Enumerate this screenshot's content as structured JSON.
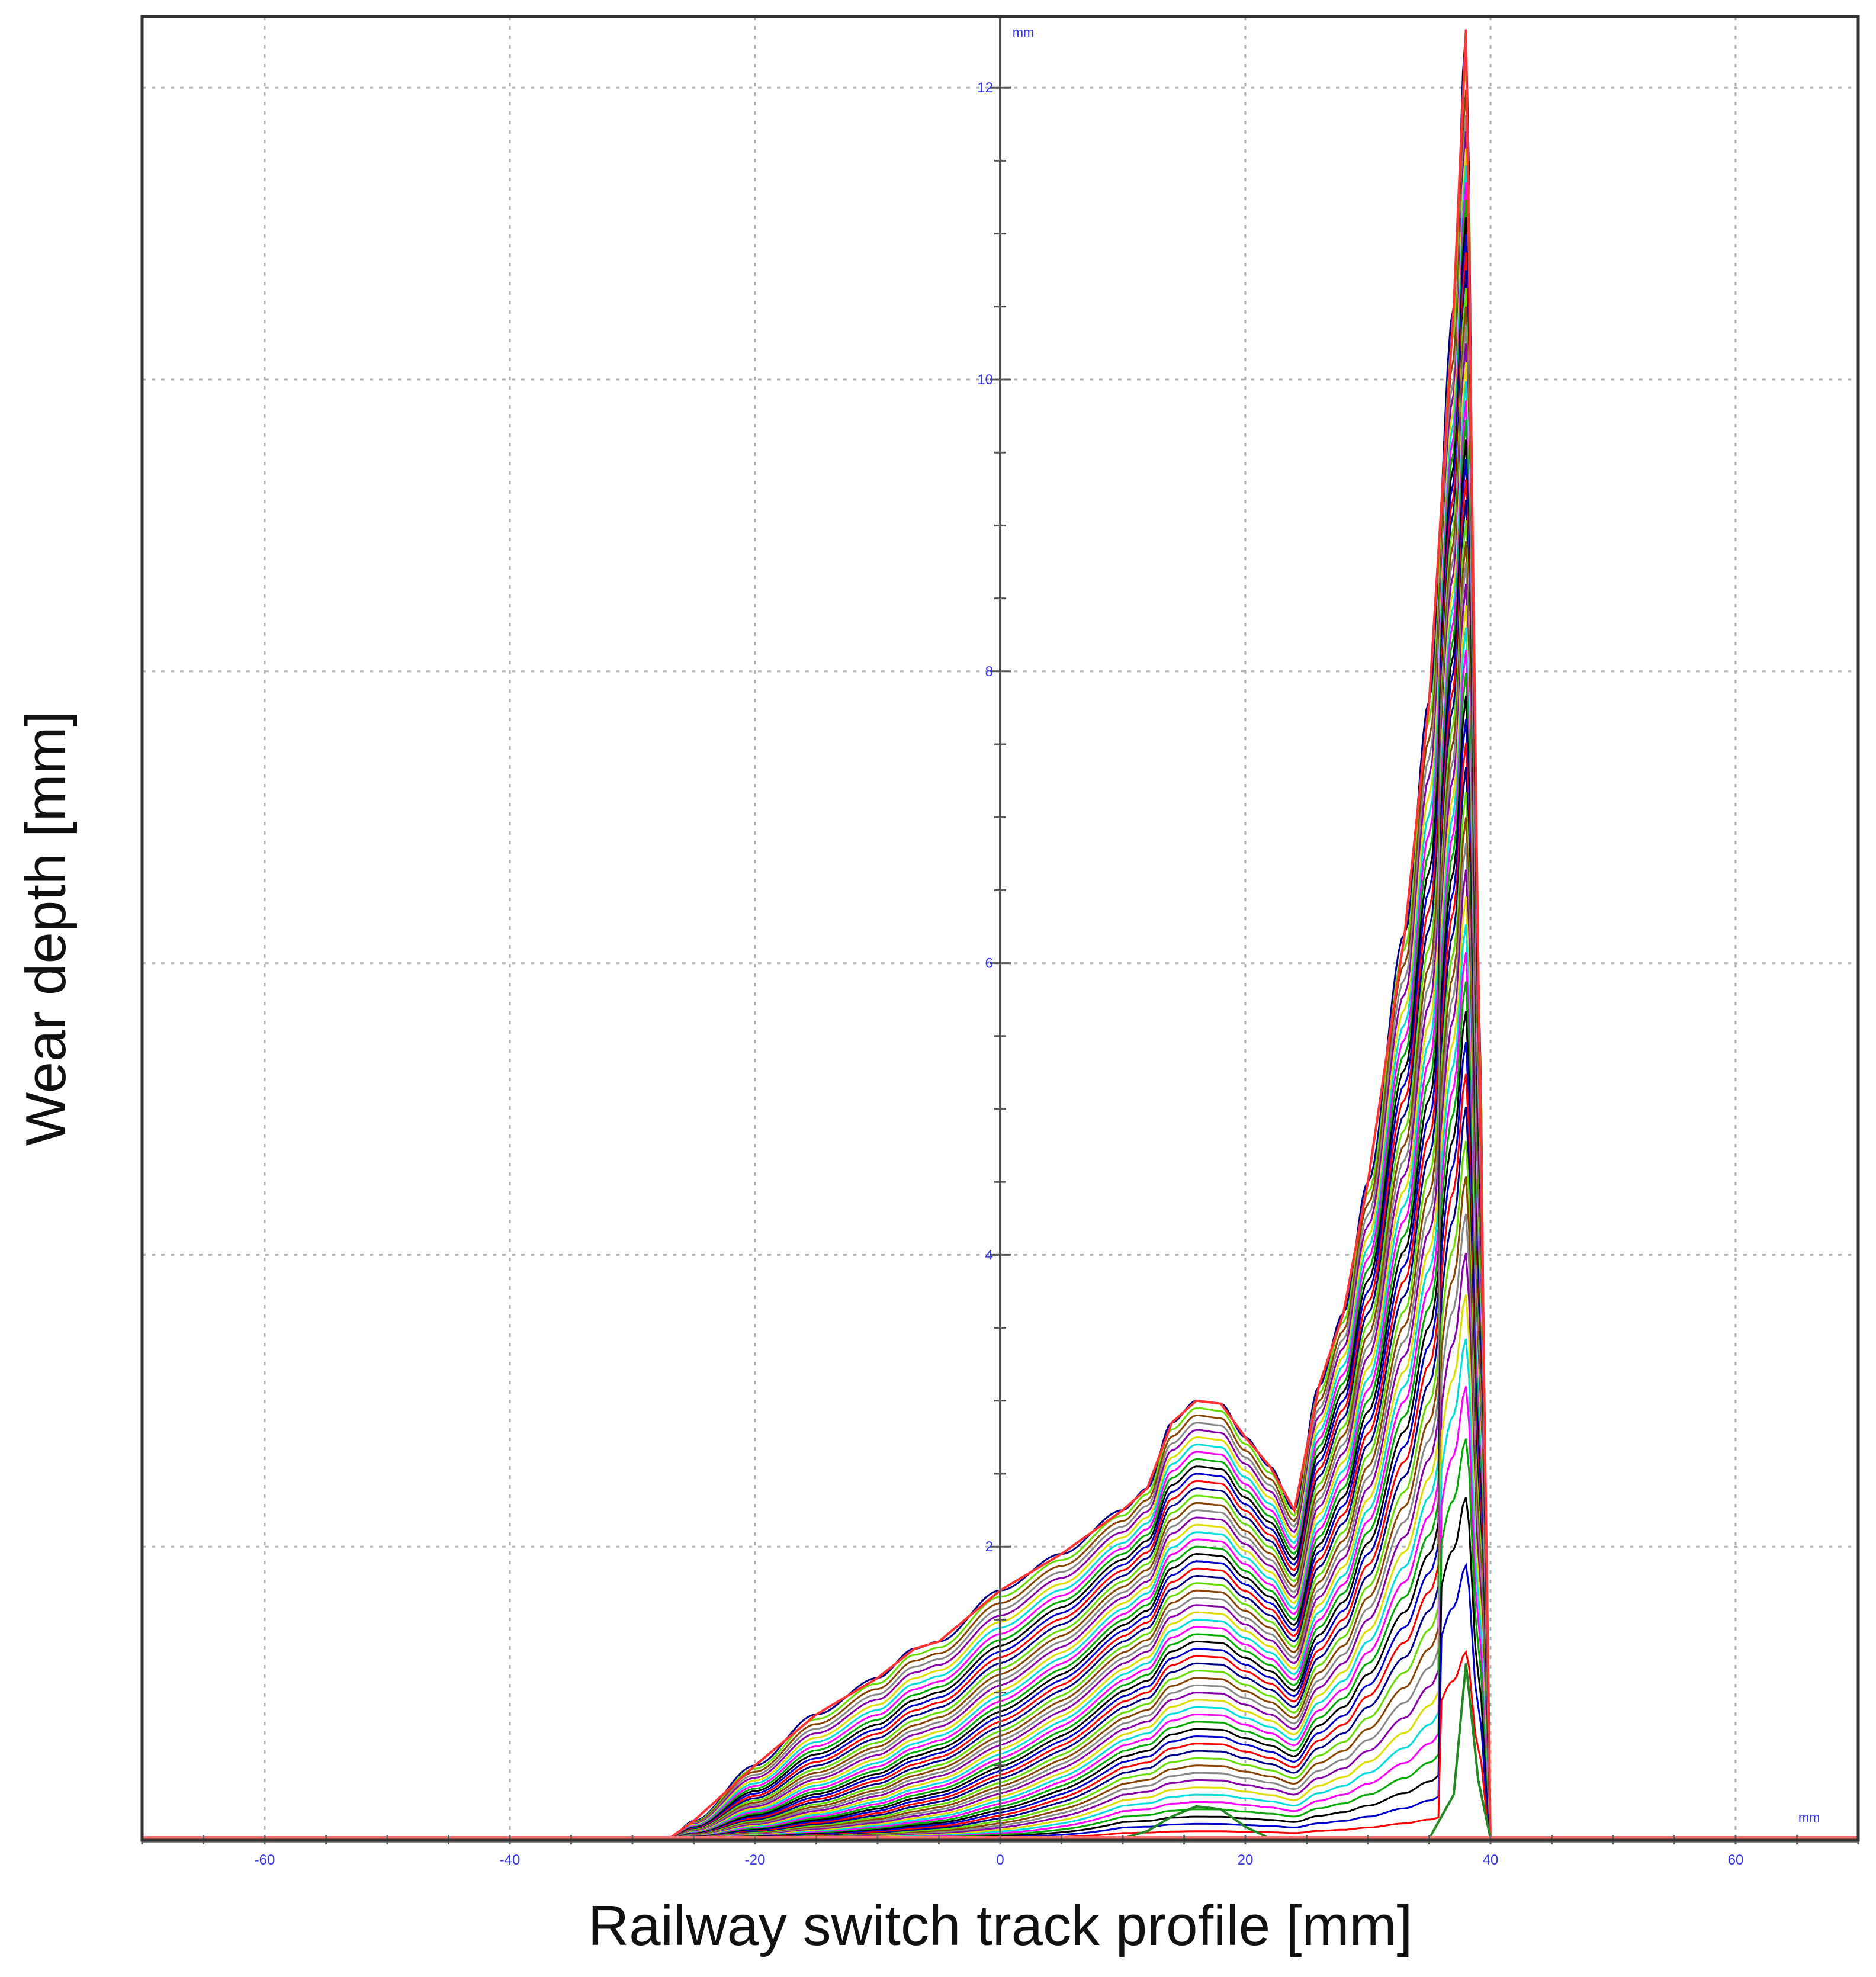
{
  "chart_data": {
    "type": "line",
    "xlabel": "Railway switch track profile [mm]",
    "ylabel": "Wear depth [mm]",
    "x_unit": "mm",
    "y_unit": "mm",
    "xlim": [
      -70,
      70
    ],
    "ylim": [
      0,
      12.5
    ],
    "x_ticks": [
      -60,
      -40,
      -20,
      0,
      20,
      40,
      60
    ],
    "y_ticks": [
      2,
      4,
      6,
      8,
      10,
      12
    ],
    "grid": true,
    "colors": {
      "tick_text": "#3333ee",
      "grid": "#b0b0b0",
      "frame": "#333333",
      "baseline": "#ff7070",
      "series_palette": [
        "#ff0000",
        "#0000cc",
        "#000000",
        "#00aa00",
        "#ff00ff",
        "#00dddd",
        "#dddd00",
        "#8800aa",
        "#888888",
        "#884400",
        "#66dd00",
        "#000088"
      ]
    },
    "series_count": 60,
    "base_profile": {
      "x": [
        -27,
        -25,
        -20,
        -15,
        -10,
        -7,
        -5,
        0,
        5,
        10,
        12,
        14,
        16,
        18,
        20,
        22,
        24,
        26,
        28,
        30,
        33,
        35,
        37,
        38,
        39,
        40
      ],
      "y": [
        0,
        0.12,
        0.5,
        0.85,
        1.1,
        1.3,
        1.35,
        1.7,
        1.95,
        2.25,
        2.4,
        2.85,
        3.0,
        2.98,
        2.75,
        2.55,
        2.25,
        3.1,
        3.6,
        4.5,
        6.2,
        7.8,
        10.5,
        12.4,
        6.0,
        0
      ]
    },
    "curves": [
      {
        "name": "",
        "x": [
          -27,
          -25,
          -20,
          -15,
          -10,
          -7,
          -5,
          0,
          5,
          10,
          12,
          14,
          16,
          18,
          20,
          22,
          24,
          26,
          28,
          30,
          33,
          35,
          37,
          38,
          39,
          40
        ],
        "y": [
          0,
          0.12,
          0.5,
          0.85,
          1.1,
          1.3,
          1.35,
          1.7,
          1.95,
          2.25,
          2.4,
          2.85,
          3.0,
          2.98,
          2.75,
          2.55,
          2.25,
          3.1,
          3.6,
          4.5,
          6.2,
          7.8,
          10.5,
          12.4,
          6.0,
          0
        ]
      },
      {
        "name": "",
        "x": [
          10,
          12,
          14,
          16,
          18,
          20,
          22,
          24,
          26,
          28,
          30,
          33,
          35,
          37,
          38,
          39,
          40
        ],
        "y": [
          0,
          0.05,
          0.15,
          0.22,
          0.2,
          0.08,
          0,
          0,
          0,
          0,
          0,
          0,
          0,
          0.3,
          1.2,
          0.4,
          0
        ]
      }
    ]
  }
}
